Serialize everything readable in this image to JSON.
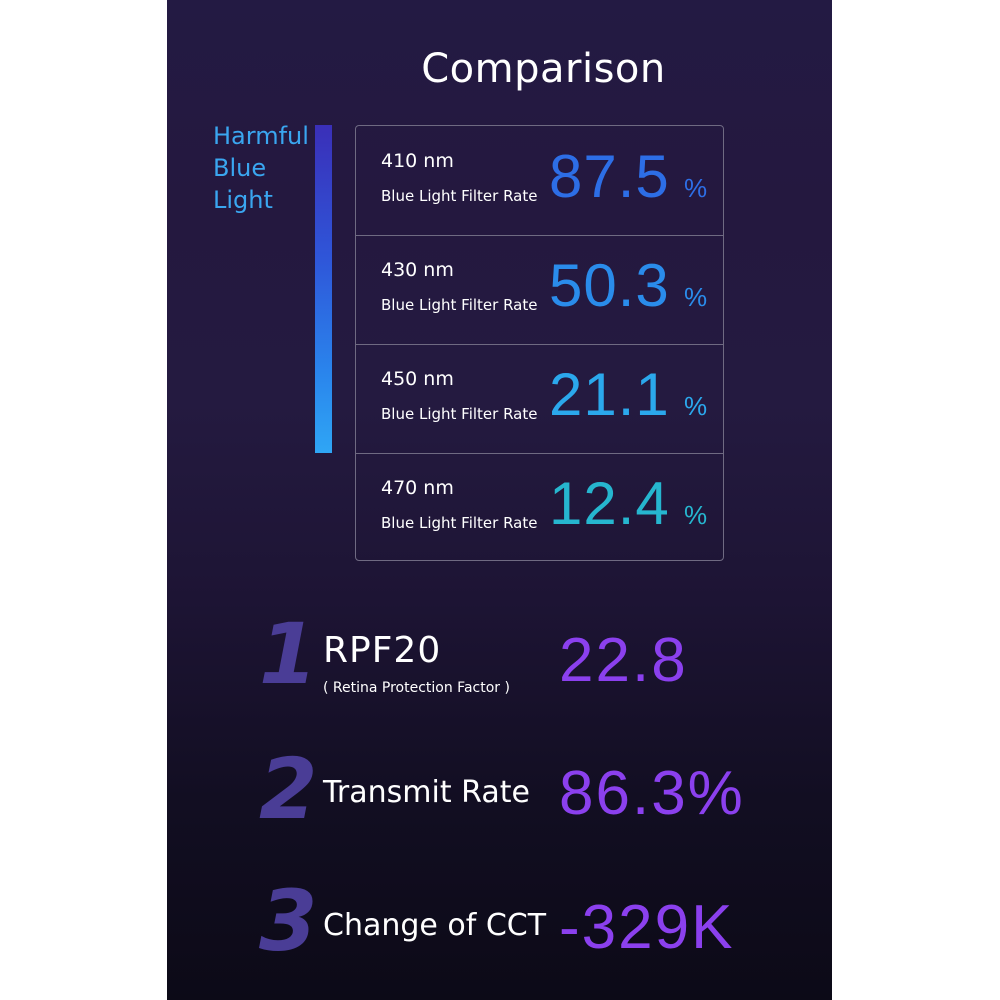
{
  "title": "Comparison",
  "harmful": {
    "line1": "Harmful",
    "line2": "Blue",
    "line3": "Light"
  },
  "rows": [
    {
      "wavelength": "410 nm",
      "label": "Blue Light Filter Rate",
      "value": "87.5",
      "unit": "%",
      "color": "#2d6ee6"
    },
    {
      "wavelength": "430 nm",
      "label": "Blue Light Filter Rate",
      "value": "50.3",
      "unit": "%",
      "color": "#2a8ceb"
    },
    {
      "wavelength": "450 nm",
      "label": "Blue Light Filter Rate",
      "value": "21.1",
      "unit": "%",
      "color": "#2ba8ec"
    },
    {
      "wavelength": "470 nm",
      "label": "Blue Light Filter Rate",
      "value": "12.4",
      "unit": "%",
      "color": "#26b6cf"
    }
  ],
  "features": [
    {
      "number": "1",
      "name": "RPF20",
      "sub": "( Retina Protection Factor )",
      "value": "22.8"
    },
    {
      "number": "2",
      "name": "Transmit Rate",
      "value": "86.3%"
    },
    {
      "number": "3",
      "name": "Change of CCT",
      "value": "-329K"
    }
  ],
  "colors": {
    "accent_purple": "#8b40ee",
    "bar_top": "#3a2fb8",
    "bar_bottom": "#2fa6f5"
  }
}
